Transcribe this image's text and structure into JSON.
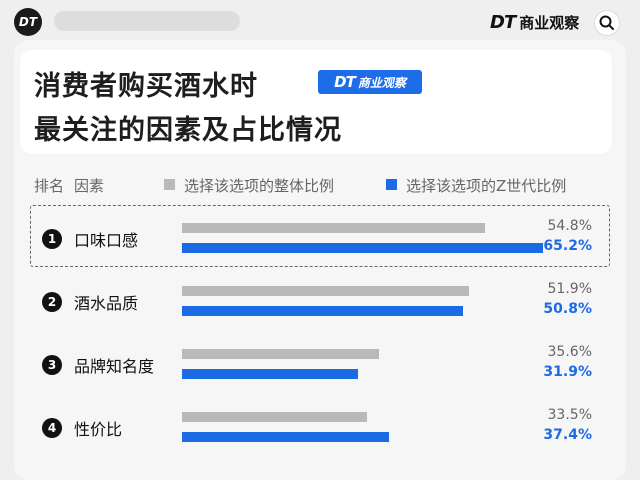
{
  "header": {
    "badge": "DT",
    "brand_logo": "DT",
    "brand_text": "商业观察"
  },
  "title": {
    "line1": "消费者购买酒水时",
    "line2": "最关注的因素及占比情况",
    "logo_mark": "DT",
    "logo_text": "商业观察"
  },
  "chart_data": {
    "type": "bar",
    "column_headers": {
      "rank": "排名",
      "factor": "因素"
    },
    "categories": [
      "口味口感",
      "酒水品质",
      "品牌知名度",
      "性价比"
    ],
    "ranks": [
      "1",
      "2",
      "3",
      "4"
    ],
    "series": [
      {
        "name": "选择该选项的整体比例",
        "values": [
          54.8,
          51.9,
          35.6,
          33.5
        ],
        "labels": [
          "54.8%",
          "51.9%",
          "35.6%",
          "33.5%"
        ],
        "color": "#b9b9b9"
      },
      {
        "name": "选择该选项的Z世代比例",
        "values": [
          65.2,
          50.8,
          31.9,
          37.4
        ],
        "labels": [
          "65.2%",
          "50.8%",
          "31.9%",
          "37.4%"
        ],
        "color": "#1d6ae5"
      }
    ],
    "xlim": [
      0,
      100
    ],
    "highlight_category": "口味口感",
    "legend_position": "top"
  }
}
